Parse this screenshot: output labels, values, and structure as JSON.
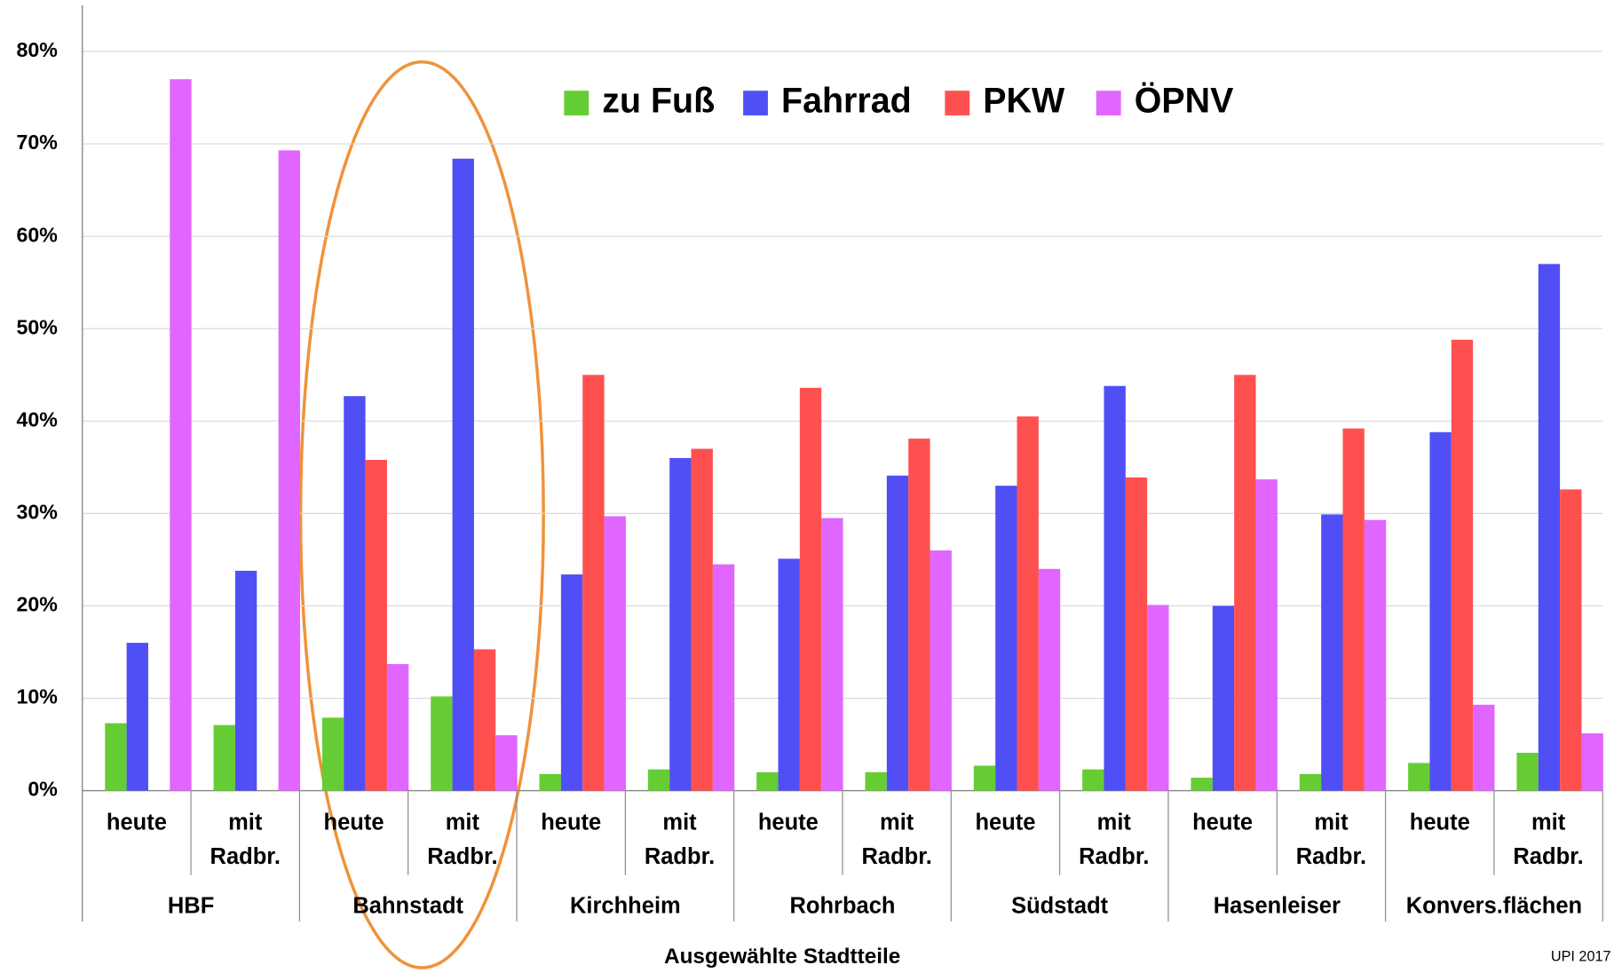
{
  "chart_data": {
    "type": "bar",
    "x_label": "Ausgewählte Stadtteile",
    "annotations": [
      "UPI 2017"
    ],
    "groups": [
      "HBF",
      "Bahnstadt",
      "Kirchheim",
      "Rohrbach",
      "Südstadt",
      "Hasenleiser",
      "Konvers.flächen"
    ],
    "categories": [
      "heute",
      "mit Radbr.",
      "heute",
      "mit Radbr.",
      "heute",
      "mit Radbr.",
      "heute",
      "mit Radbr.",
      "heute",
      "mit Radbr.",
      "heute",
      "mit Radbr.",
      "heute",
      "mit Radbr."
    ],
    "series": [
      {
        "name": "zu Fuß",
        "color": "#66cc33",
        "values": [
          7.3,
          7.1,
          7.9,
          10.2,
          1.8,
          2.3,
          2.0,
          2.0,
          2.7,
          2.3,
          1.4,
          1.8,
          3.0,
          4.1
        ]
      },
      {
        "name": "Fahrrad",
        "color": "#4f4ff5",
        "values": [
          16,
          23.8,
          42.7,
          68.4,
          23.4,
          36,
          25.1,
          34.1,
          33,
          43.8,
          20,
          29.9,
          38.8,
          57
        ]
      },
      {
        "name": "PKW",
        "color": "#ff5050",
        "values": [
          null,
          null,
          35.8,
          15.3,
          45,
          37,
          43.6,
          38.1,
          40.5,
          33.9,
          45,
          39.2,
          48.8,
          32.6
        ]
      },
      {
        "name": "ÖPNV",
        "color": "#e066ff",
        "values": [
          77,
          69.3,
          13.7,
          6,
          29.7,
          24.5,
          29.5,
          26,
          24,
          20.1,
          33.7,
          29.3,
          9.3,
          6.2
        ]
      }
    ],
    "ylim": [
      0,
      85
    ],
    "yticks": [
      {
        "value": 0,
        "label": "0%"
      },
      {
        "value": 10,
        "label": "10%"
      },
      {
        "value": 20,
        "label": "20%"
      },
      {
        "value": 30,
        "label": "30%"
      },
      {
        "value": 40,
        "label": "40%"
      },
      {
        "value": 50,
        "label": "50%"
      },
      {
        "value": 60,
        "label": "60%"
      },
      {
        "value": 70,
        "label": "70%"
      },
      {
        "value": 80,
        "label": "80%"
      }
    ],
    "grid": true,
    "legend": "top"
  }
}
